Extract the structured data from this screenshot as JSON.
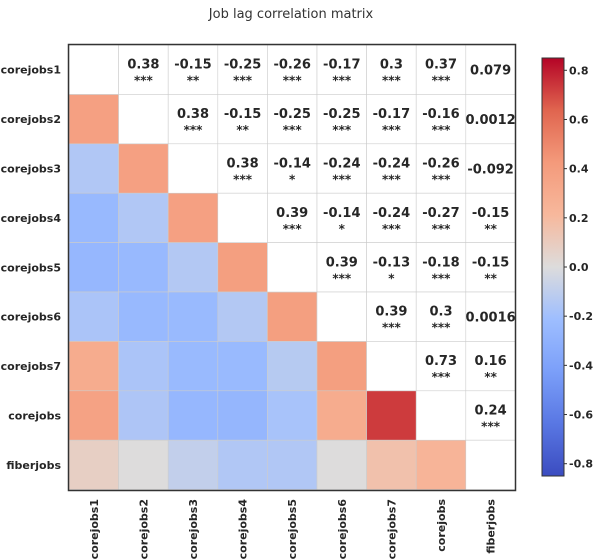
{
  "chart_data": {
    "type": "heatmap",
    "title": "Job lag correlation matrix",
    "labels": [
      "corejobs1",
      "corejobs2",
      "corejobs3",
      "corejobs4",
      "corejobs5",
      "corejobs6",
      "corejobs7",
      "corejobs",
      "fiberjobs"
    ],
    "upper_annotations": [
      {
        "row": 0,
        "col": 1,
        "value": "0.38",
        "sig": "***"
      },
      {
        "row": 0,
        "col": 2,
        "value": "-0.15",
        "sig": "**"
      },
      {
        "row": 0,
        "col": 3,
        "value": "-0.25",
        "sig": "***"
      },
      {
        "row": 0,
        "col": 4,
        "value": "-0.26",
        "sig": "***"
      },
      {
        "row": 0,
        "col": 5,
        "value": "-0.17",
        "sig": "***"
      },
      {
        "row": 0,
        "col": 6,
        "value": "0.3",
        "sig": "***"
      },
      {
        "row": 0,
        "col": 7,
        "value": "0.37",
        "sig": "***"
      },
      {
        "row": 0,
        "col": 8,
        "value": "0.079",
        "sig": ""
      },
      {
        "row": 1,
        "col": 2,
        "value": "0.38",
        "sig": "***"
      },
      {
        "row": 1,
        "col": 3,
        "value": "-0.15",
        "sig": "**"
      },
      {
        "row": 1,
        "col": 4,
        "value": "-0.25",
        "sig": "***"
      },
      {
        "row": 1,
        "col": 5,
        "value": "-0.25",
        "sig": "***"
      },
      {
        "row": 1,
        "col": 6,
        "value": "-0.17",
        "sig": "***"
      },
      {
        "row": 1,
        "col": 7,
        "value": "-0.16",
        "sig": "***"
      },
      {
        "row": 1,
        "col": 8,
        "value": "0.0012",
        "sig": ""
      },
      {
        "row": 2,
        "col": 3,
        "value": "0.38",
        "sig": "***"
      },
      {
        "row": 2,
        "col": 4,
        "value": "-0.14",
        "sig": "*"
      },
      {
        "row": 2,
        "col": 5,
        "value": "-0.24",
        "sig": "***"
      },
      {
        "row": 2,
        "col": 6,
        "value": "-0.24",
        "sig": "***"
      },
      {
        "row": 2,
        "col": 7,
        "value": "-0.26",
        "sig": "***"
      },
      {
        "row": 2,
        "col": 8,
        "value": "-0.092",
        "sig": ""
      },
      {
        "row": 3,
        "col": 4,
        "value": "0.39",
        "sig": "***"
      },
      {
        "row": 3,
        "col": 5,
        "value": "-0.14",
        "sig": "*"
      },
      {
        "row": 3,
        "col": 6,
        "value": "-0.24",
        "sig": "***"
      },
      {
        "row": 3,
        "col": 7,
        "value": "-0.27",
        "sig": "***"
      },
      {
        "row": 3,
        "col": 8,
        "value": "-0.15",
        "sig": "**"
      },
      {
        "row": 4,
        "col": 5,
        "value": "0.39",
        "sig": "***"
      },
      {
        "row": 4,
        "col": 6,
        "value": "-0.13",
        "sig": "*"
      },
      {
        "row": 4,
        "col": 7,
        "value": "-0.18",
        "sig": "***"
      },
      {
        "row": 4,
        "col": 8,
        "value": "-0.15",
        "sig": "**"
      },
      {
        "row": 5,
        "col": 6,
        "value": "0.39",
        "sig": "***"
      },
      {
        "row": 5,
        "col": 7,
        "value": "0.3",
        "sig": "***"
      },
      {
        "row": 5,
        "col": 8,
        "value": "0.0016",
        "sig": ""
      },
      {
        "row": 6,
        "col": 7,
        "value": "0.73",
        "sig": "***"
      },
      {
        "row": 6,
        "col": 8,
        "value": "0.16",
        "sig": "**"
      },
      {
        "row": 7,
        "col": 8,
        "value": "0.24",
        "sig": "***"
      }
    ],
    "colorbar": {
      "vmin": -0.85,
      "vmax": 0.85,
      "ticks": [
        "-0.8",
        "-0.6",
        "-0.4",
        "-0.2",
        "0.0",
        "0.2",
        "0.4",
        "0.6",
        "0.8"
      ],
      "colormap": "coolwarm"
    }
  }
}
